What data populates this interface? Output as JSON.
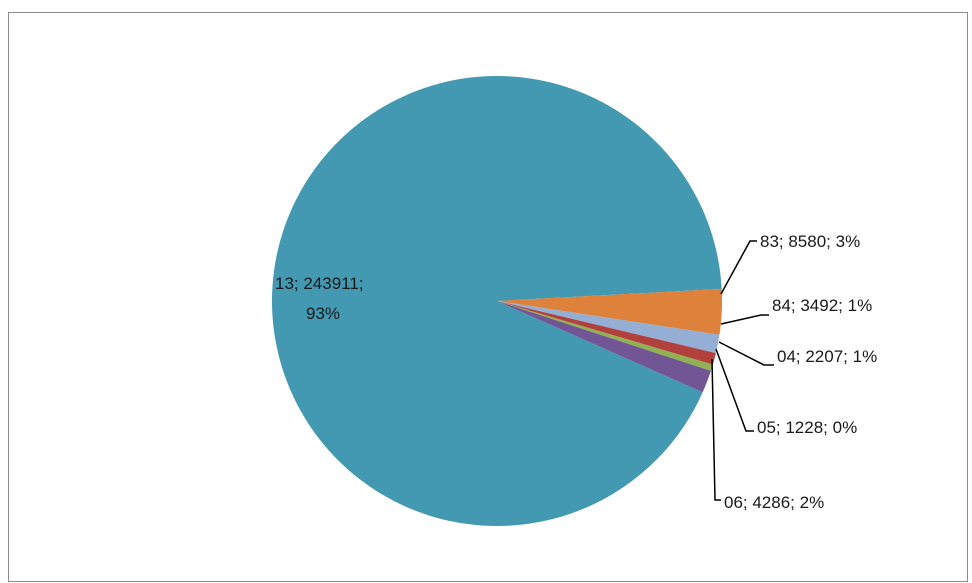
{
  "chart_data": {
    "type": "pie",
    "title": "",
    "slices": [
      {
        "label": "13",
        "value": 243911,
        "percent": "93%",
        "color": "#4398b2"
      },
      {
        "label": "83",
        "value": 8580,
        "percent": "3%",
        "color": "#de823b"
      },
      {
        "label": "84",
        "value": 3492,
        "percent": "1%",
        "color": "#94aed4"
      },
      {
        "label": "04",
        "value": 2207,
        "percent": "1%",
        "color": "#b2403d"
      },
      {
        "label": "05",
        "value": 1228,
        "percent": "0%",
        "color": "#90b252"
      },
      {
        "label": "06",
        "value": 4286,
        "percent": "2%",
        "color": "#715595"
      }
    ],
    "data_labels": [
      "13; 243911;",
      "93%",
      "83; 8580; 3%",
      "84; 3492; 1%",
      "04; 2207; 1%",
      "05; 1228; 0%",
      "06; 4286; 2%"
    ],
    "legend": "none"
  }
}
